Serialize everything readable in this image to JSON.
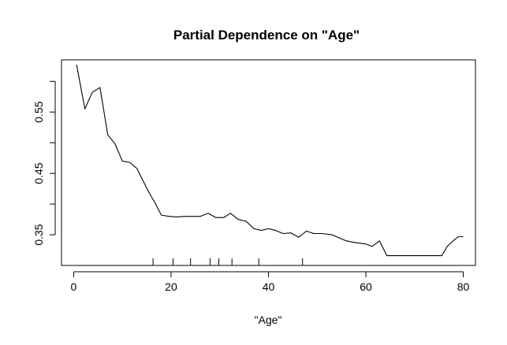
{
  "chart_data": {
    "type": "line",
    "title": "Partial Dependence on \"Age\"",
    "xlabel": "\"Age\"",
    "ylabel": "",
    "xlim": [
      -2.5,
      82.5
    ],
    "ylim": [
      0.3,
      0.635
    ],
    "x_ticks": [
      0,
      20,
      40,
      60,
      80
    ],
    "x_tick_labels": [
      "0",
      "20",
      "40",
      "60",
      "80"
    ],
    "y_ticks": [
      0.35,
      0.45,
      0.55
    ],
    "y_tick_labels": [
      "0.35",
      "0.45",
      "0.55"
    ],
    "y_minor_ticks": [
      0.4,
      0.5,
      0.6
    ],
    "grid": false,
    "legend": "none",
    "line_color": "#000000",
    "series": [
      {
        "x": [
          0.6,
          2.3,
          3.8,
          5.4,
          7.0,
          8.5,
          10.0,
          11.5,
          13.0,
          14.3,
          15.6,
          16.7,
          18.0,
          19.6,
          21.2,
          22.8,
          24.5,
          26.0,
          27.6,
          29.2,
          30.8,
          32.2,
          33.8,
          35.4,
          37.0,
          38.5,
          40.0,
          41.5,
          43.0,
          44.6,
          46.2,
          47.8,
          49.3,
          51.0,
          53.0,
          56.0,
          58.0,
          60.0,
          61.3,
          62.8,
          64.3,
          66.0,
          70.0,
          74.0,
          75.6,
          76.7,
          77.9,
          79.0,
          80.0
        ],
        "y": [
          0.627,
          0.555,
          0.582,
          0.59,
          0.513,
          0.498,
          0.47,
          0.468,
          0.458,
          0.437,
          0.417,
          0.402,
          0.382,
          0.38,
          0.379,
          0.38,
          0.38,
          0.38,
          0.385,
          0.378,
          0.378,
          0.385,
          0.375,
          0.372,
          0.36,
          0.357,
          0.36,
          0.357,
          0.352,
          0.353,
          0.346,
          0.356,
          0.352,
          0.352,
          0.35,
          0.34,
          0.337,
          0.335,
          0.331,
          0.34,
          0.316,
          0.316,
          0.316,
          0.316,
          0.316,
          0.331,
          0.34,
          0.347,
          0.347
        ]
      }
    ],
    "rug_x": [
      16.3,
      20.4,
      24.0,
      28.0,
      29.8,
      32.5,
      38.0,
      47.0
    ]
  }
}
